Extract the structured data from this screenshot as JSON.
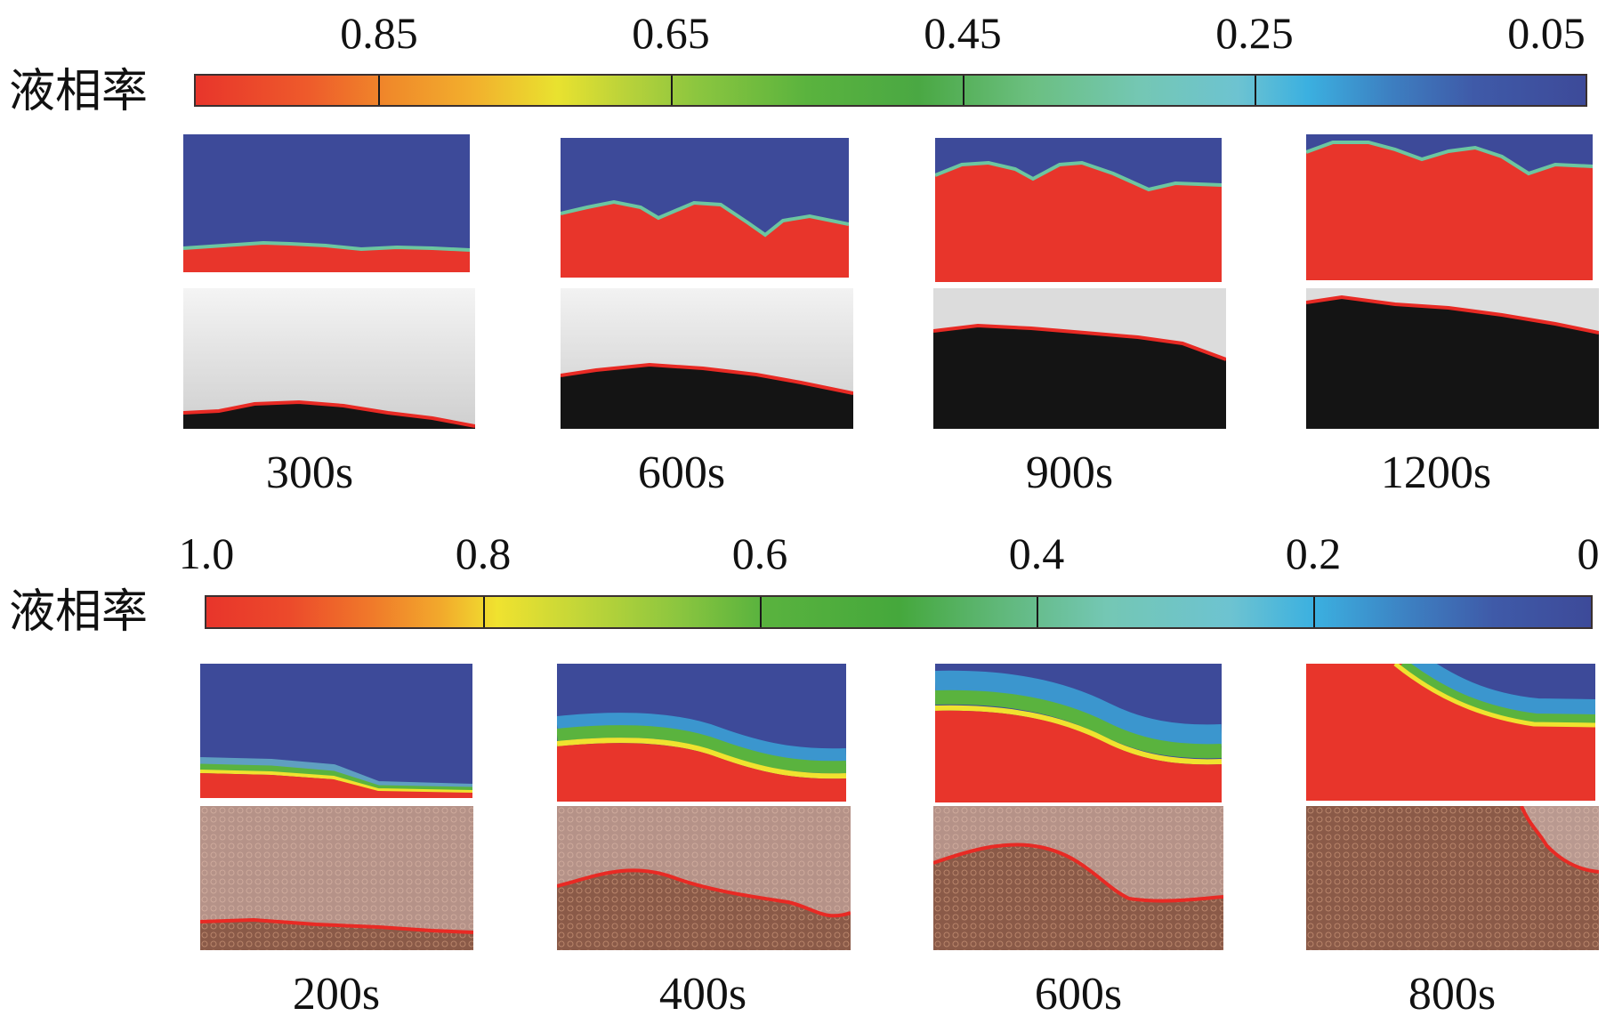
{
  "top_section": {
    "colorbar_label": "液相率",
    "ticks": [
      "0.85",
      "0.65",
      "0.45",
      "0.25",
      "0.05"
    ],
    "times": [
      "300s",
      "600s",
      "900s",
      "1200s"
    ]
  },
  "bottom_section": {
    "colorbar_label": "液相率",
    "ticks": [
      "1.0",
      "0.8",
      "0.6",
      "0.4",
      "0.2",
      "0"
    ],
    "times": [
      "200s",
      "400s",
      "600s",
      "800s"
    ]
  },
  "colors": {
    "liquid_red": "#e8352b",
    "solid_blue": "#3d4a99",
    "interface_line": "#e82a24",
    "black_sample": "#111111",
    "copper_foam": "#8a5a48"
  }
}
